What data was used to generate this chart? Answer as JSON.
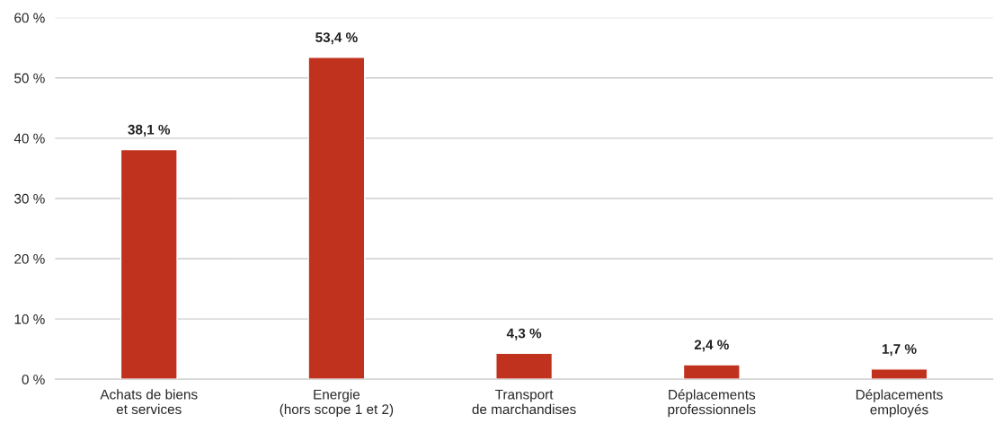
{
  "chart_data": {
    "type": "bar",
    "categories": [
      "Achats de biens\net services",
      "Energie\n(hors scope 1 et 2)",
      "Transport\nde marchandises",
      "Déplacements\nprofessionnels",
      "Déplacements\nemployés"
    ],
    "values": [
      38.1,
      53.4,
      4.3,
      2.4,
      1.7
    ],
    "value_labels": [
      "38,1 %",
      "53,4 %",
      "4,3 %",
      "2,4 %",
      "1,7 %"
    ],
    "color": "#c0321e",
    "ylim": [
      0,
      60
    ],
    "yticks": [
      {
        "value": 0,
        "label": "0 %"
      },
      {
        "value": 10,
        "label": "10 %"
      },
      {
        "value": 20,
        "label": "20 %"
      },
      {
        "value": 30,
        "label": "30 %"
      },
      {
        "value": 40,
        "label": "40 %"
      },
      {
        "value": 50,
        "label": "50 %"
      },
      {
        "value": 60,
        "label": "60 %"
      }
    ],
    "grid": "y"
  }
}
